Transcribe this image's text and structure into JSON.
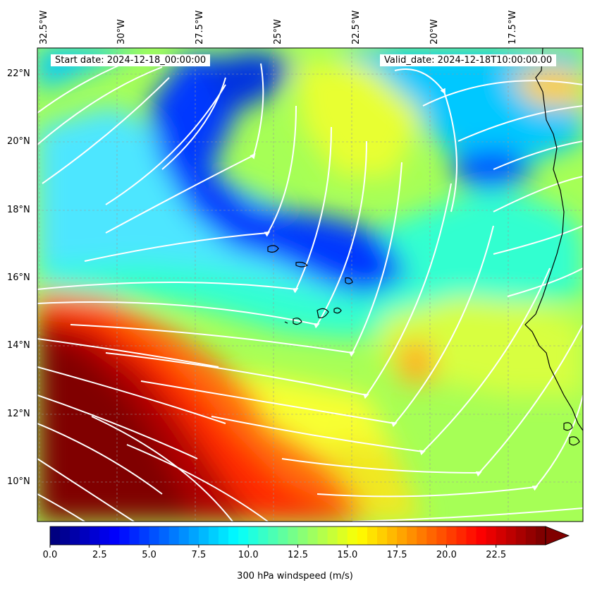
{
  "map": {
    "header": {
      "start_date": "Start date: 2024-12-18_00:00:00",
      "valid_date": "Valid_date: 2024-12-18T10:00:00.00"
    },
    "lon_labels": [
      "32.5°W",
      "30°W",
      "27.5°W",
      "25°W",
      "22.5°W",
      "20°W",
      "17.5°W"
    ],
    "lat_labels": [
      "22°N",
      "20°N",
      "18°N",
      "16°N",
      "14°N",
      "12°N",
      "10°N"
    ],
    "field": "windspeed",
    "colormap": "jet",
    "vector_overlay": "white streamlines"
  },
  "colorbar": {
    "min": 0,
    "max": 25,
    "extend": "max",
    "ticks": [
      "0.0",
      "2.5",
      "5.0",
      "7.5",
      "10.0",
      "12.5",
      "15.0",
      "17.5",
      "20.0",
      "22.5"
    ],
    "label": "300 hPa windspeed (m/s)"
  },
  "colors": {
    "streamline": "#ffffff",
    "coastline": "#000000",
    "grid": "#999999"
  }
}
